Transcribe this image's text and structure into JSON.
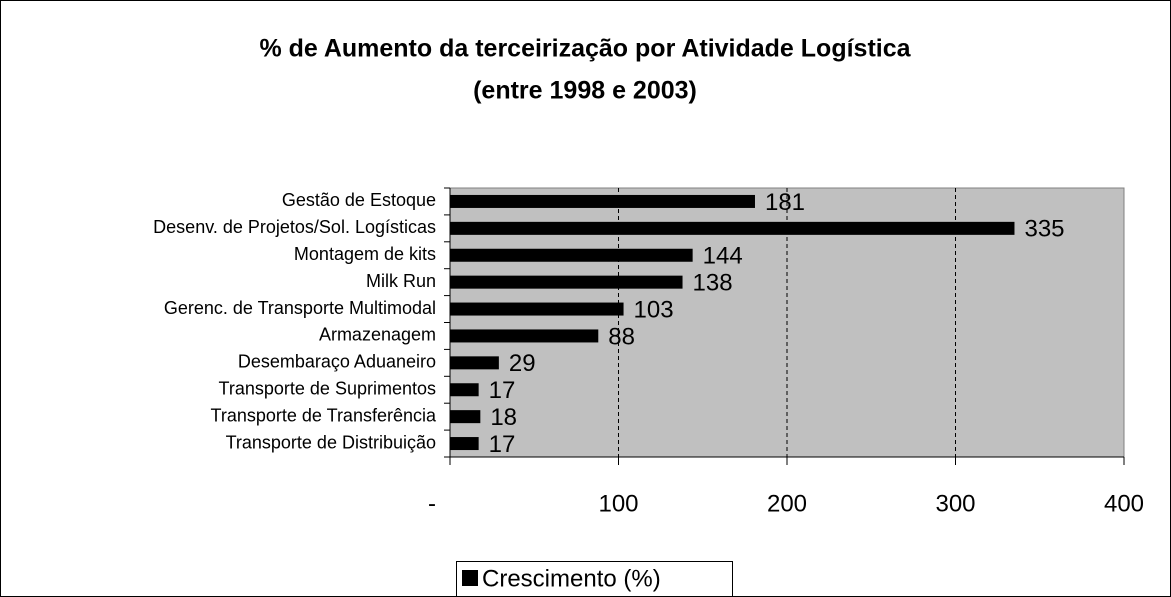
{
  "chart_data": {
    "type": "bar",
    "orientation": "horizontal",
    "title": [
      "% de Aumento da terceirização por Atividade Logística",
      "(entre 1998 e 2003)"
    ],
    "categories": [
      "Gestão de Estoque",
      "Desenv. de Projetos/Sol. Logísticas",
      "Montagem de kits",
      "Milk Run",
      "Gerenc. de Transporte Multimodal",
      "Armazenagem",
      "Desembaraço Aduaneiro",
      "Transporte de Suprimentos",
      "Transporte de Transferência",
      "Transporte de Distribuição"
    ],
    "series": [
      {
        "name": "Crescimento (%)",
        "color": "#000000",
        "values": [
          181,
          335,
          144,
          138,
          103,
          88,
          29,
          17,
          18,
          17
        ]
      }
    ],
    "xlim": [
      0,
      400
    ],
    "xticks": [
      {
        "value": 0,
        "label": "-"
      },
      100,
      200,
      300,
      400
    ],
    "grid": true,
    "plot_background": "#c0c0c0",
    "legend": "bottom"
  }
}
